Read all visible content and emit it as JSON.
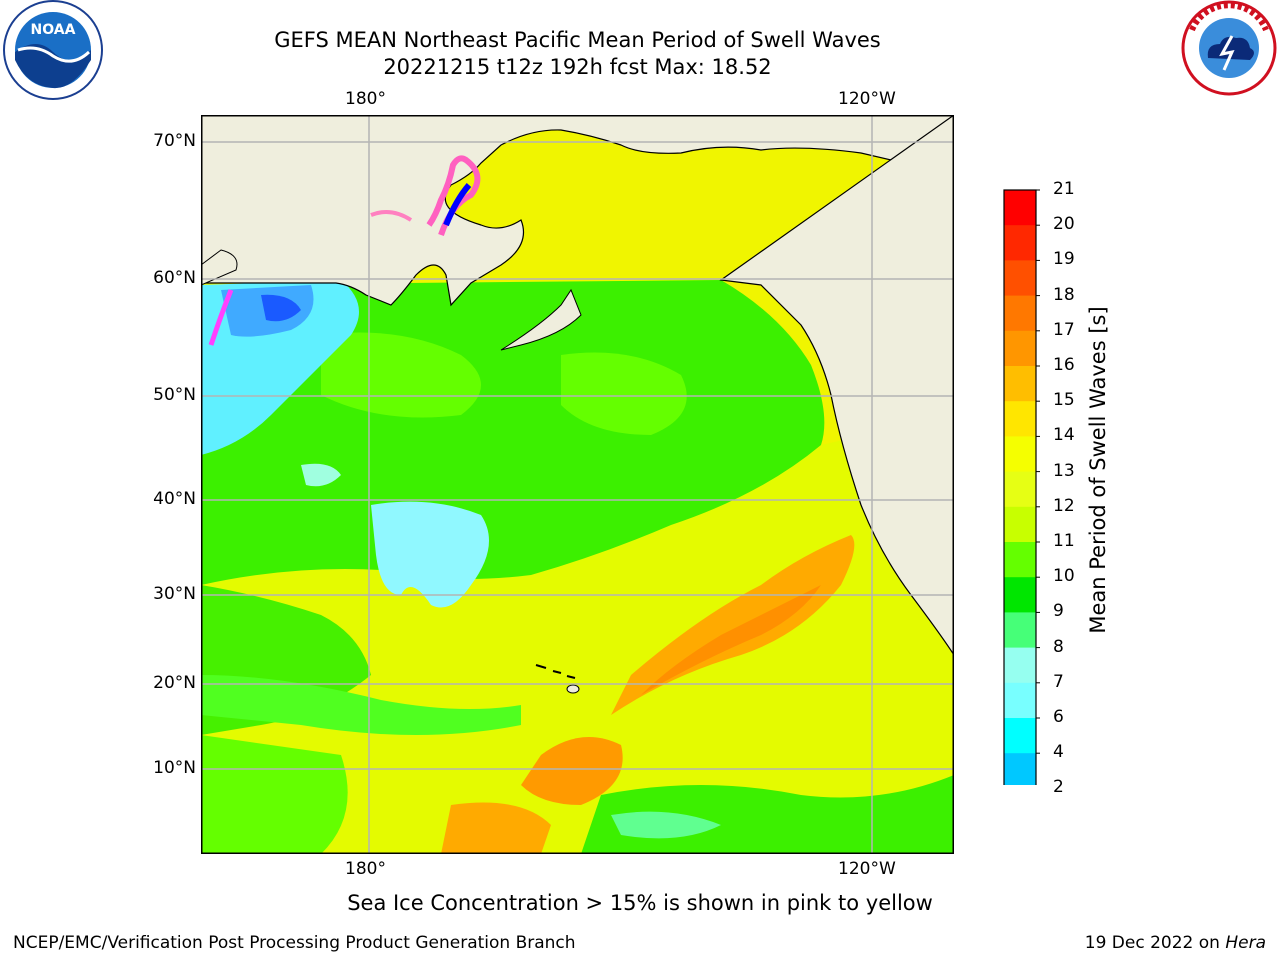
{
  "title_line1": "GEFS MEAN Northeast Pacific Mean Period of Swell Waves",
  "title_line2": "20221215 t12z 192h fcst   Max: 18.52",
  "logos": {
    "left": "NOAA",
    "right": "NATIONAL WEATHER SERVICE",
    "left_icon": "noaa-logo-icon",
    "right_icon": "nws-logo-icon"
  },
  "map": {
    "lon_labels_top": [
      "180°",
      "120°W"
    ],
    "lon_labels_bottom": [
      "180°",
      "120°W"
    ],
    "lat_labels": [
      "70°N",
      "60°N",
      "50°N",
      "40°N",
      "30°N",
      "20°N",
      "10°N"
    ],
    "land_color": "#efeedd",
    "grid_color": "#b4b4b4"
  },
  "colorbar": {
    "label": "Mean Period of Swell Waves [s]",
    "ticks": [
      "21",
      "20",
      "19",
      "18",
      "17",
      "16",
      "15",
      "14",
      "13",
      "12",
      "11",
      "10",
      "9",
      "8",
      "7",
      "6",
      "4",
      "2"
    ],
    "colors_top_to_bottom": [
      "#ff0000",
      "#ff2800",
      "#ff5000",
      "#ff7800",
      "#ff9600",
      "#ffbe00",
      "#ffe600",
      "#f5ff00",
      "#e6ff14",
      "#c8ff00",
      "#64ff00",
      "#00e600",
      "#46ff78",
      "#96fff0",
      "#78ffff",
      "#00ffff",
      "#00c8ff",
      "#0064ff"
    ],
    "extend_color": "#0000ff"
  },
  "note": "Sea Ice Concentration > 15% is shown in pink to yellow",
  "footer_left": "NCEP/EMC/Verification Post Processing Product Generation Branch",
  "footer_right_date": "19 Dec 2022 on ",
  "footer_right_host": "Hera"
}
